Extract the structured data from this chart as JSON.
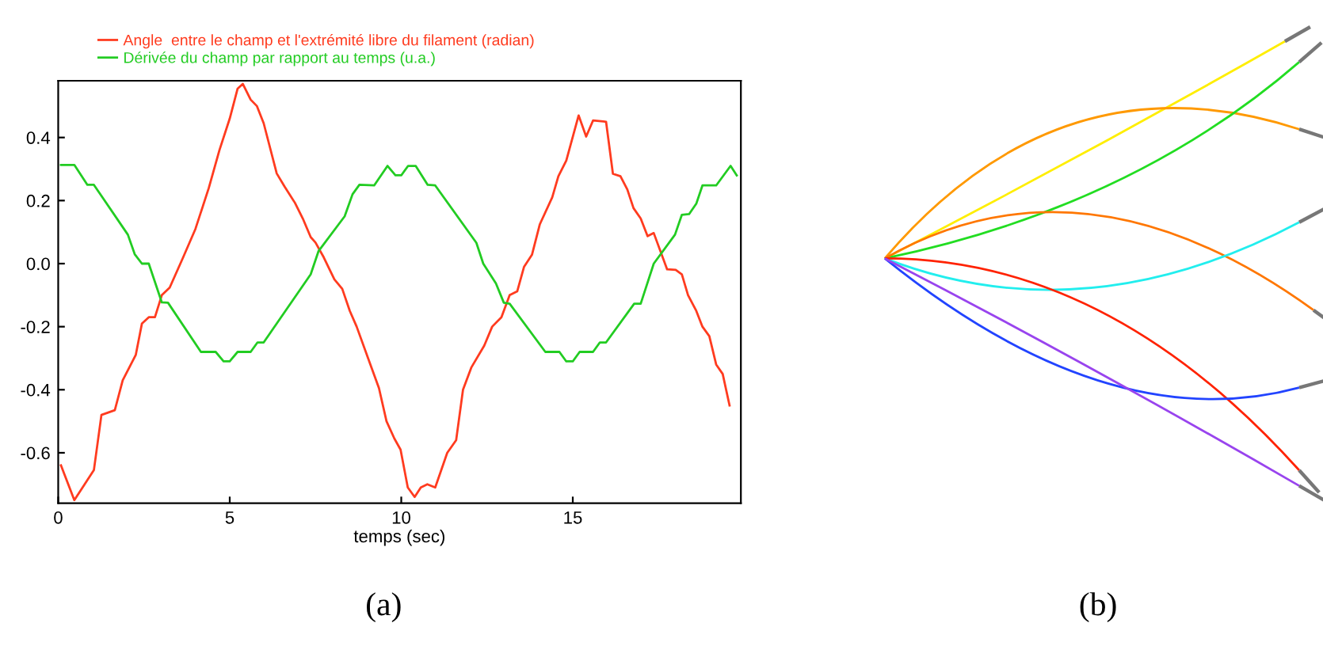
{
  "chart_data": {
    "type": "line",
    "xlabel": "temps (sec)",
    "x": [
      0.08,
      0.47,
      1.04,
      1.26,
      1.65,
      1.88,
      2.26,
      2.44,
      2.64,
      2.82,
      3.02,
      3.25,
      3.63,
      4.0,
      4.39,
      4.7,
      5.0,
      5.23,
      5.38,
      5.61,
      5.79,
      5.99,
      6.37,
      6.6,
      6.9,
      7.13,
      7.36,
      7.5,
      7.74,
      8.05,
      8.28,
      8.5,
      8.7,
      9.1,
      9.35,
      9.57,
      9.8,
      9.98,
      10.19,
      10.39,
      10.57,
      10.76,
      10.99,
      11.34,
      11.6,
      11.8,
      12.04,
      12.42,
      12.65,
      12.92,
      13.16,
      13.38,
      13.58,
      13.81,
      14.04,
      14.4,
      14.58,
      14.81,
      15.02,
      15.17,
      15.39,
      15.59,
      15.97,
      16.17,
      16.39,
      16.59,
      16.77,
      16.98,
      17.18,
      17.36,
      17.75,
      18.0,
      18.18,
      18.36,
      18.6,
      18.78,
      18.98,
      19.18,
      19.37,
      19.57
    ],
    "series": [
      {
        "name": "Angle  entre le champ et l'extrémité libre du filament (radian)",
        "color": "#ff3b1f",
        "values": [
          -0.64,
          -0.75,
          -0.655,
          -0.48,
          -0.465,
          -0.37,
          -0.29,
          -0.19,
          -0.17,
          -0.17,
          -0.1,
          -0.076,
          0.017,
          0.11,
          0.24,
          0.36,
          0.46,
          0.555,
          0.57,
          0.52,
          0.5,
          0.445,
          0.286,
          0.244,
          0.193,
          0.143,
          0.084,
          0.067,
          0.02,
          -0.05,
          -0.08,
          -0.15,
          -0.2,
          -0.32,
          -0.395,
          -0.5,
          -0.555,
          -0.59,
          -0.71,
          -0.74,
          -0.71,
          -0.7,
          -0.71,
          -0.6,
          -0.56,
          -0.4,
          -0.33,
          -0.26,
          -0.2,
          -0.17,
          -0.1,
          -0.088,
          -0.01,
          0.028,
          0.125,
          0.21,
          0.277,
          0.327,
          0.41,
          0.47,
          0.403,
          0.454,
          0.45,
          0.285,
          0.277,
          0.235,
          0.176,
          0.143,
          0.087,
          0.097,
          -0.018,
          -0.02,
          -0.034,
          -0.1,
          -0.15,
          -0.2,
          -0.23,
          -0.32,
          -0.35,
          -0.45
        ]
      },
      {
        "name": "Dérivée du champ par rapport au temps (u.a.)",
        "color": "#22cc22",
        "x": [
          0.08,
          0.47,
          0.85,
          1.04,
          2.03,
          2.23,
          2.44,
          2.64,
          3.02,
          3.2,
          4.16,
          4.59,
          4.82,
          5.0,
          5.23,
          5.61,
          5.81,
          5.99,
          7.36,
          7.59,
          8.35,
          8.58,
          8.78,
          9.21,
          9.6,
          9.83,
          10.0,
          10.2,
          10.42,
          10.77,
          10.99,
          12.19,
          12.39,
          12.76,
          12.99,
          13.16,
          14.2,
          14.61,
          14.81,
          15.0,
          15.2,
          15.59,
          15.79,
          15.97,
          16.79,
          16.98,
          17.36,
          17.98,
          18.18,
          18.39,
          18.6,
          18.78,
          19.18,
          19.6,
          19.78
        ],
        "values": [
          0.313,
          0.313,
          0.25,
          0.25,
          0.092,
          0.03,
          0.0,
          0.0,
          -0.123,
          -0.124,
          -0.28,
          -0.28,
          -0.31,
          -0.31,
          -0.28,
          -0.28,
          -0.25,
          -0.25,
          -0.034,
          0.04,
          0.15,
          0.22,
          0.25,
          0.248,
          0.31,
          0.28,
          0.28,
          0.31,
          0.31,
          0.25,
          0.248,
          0.066,
          0.0,
          -0.063,
          -0.124,
          -0.127,
          -0.28,
          -0.28,
          -0.31,
          -0.31,
          -0.28,
          -0.28,
          -0.25,
          -0.25,
          -0.127,
          -0.127,
          0.0,
          0.092,
          0.155,
          0.157,
          0.19,
          0.248,
          0.248,
          0.31,
          0.28
        ]
      }
    ],
    "xlim": [
      0,
      19.9
    ],
    "ylim": [
      -0.76,
      0.58
    ],
    "xticks": [
      0,
      5,
      10,
      15
    ],
    "yticks": [
      {
        "value": -0.6,
        "label": "-0.6"
      },
      {
        "value": -0.4,
        "label": "-0.4"
      },
      {
        "value": -0.2,
        "label": "-0.2"
      },
      {
        "value": 0,
        "label": "0.0"
      },
      {
        "value": 0.2,
        "label": "0.2"
      },
      {
        "value": 0.4,
        "label": "0.4"
      }
    ],
    "grid": false,
    "legend": "top",
    "marker": "none",
    "line_style": "solid",
    "annotations": [
      "(a)",
      "(b)"
    ]
  }
}
